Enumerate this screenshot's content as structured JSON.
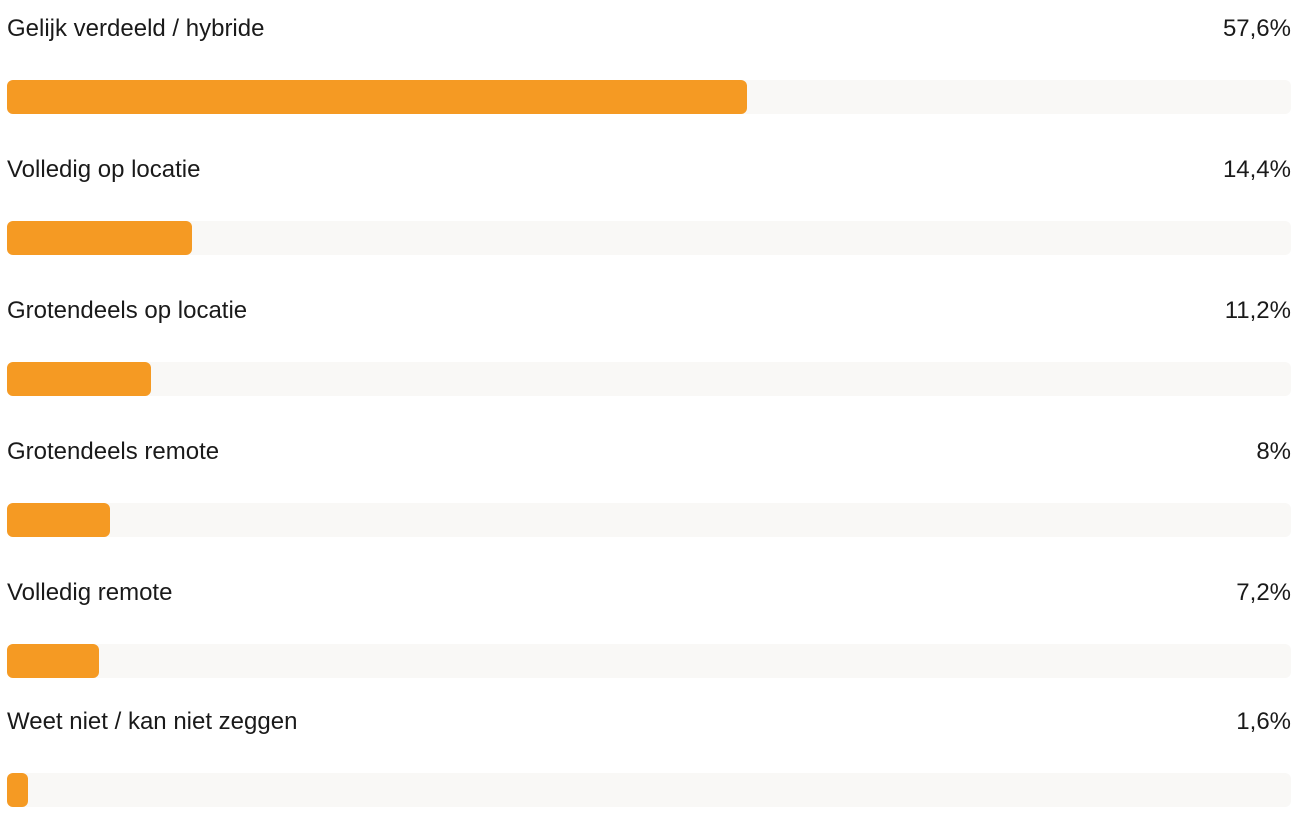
{
  "chart_data": {
    "type": "bar",
    "orientation": "horizontal",
    "categories": [
      "Gelijk verdeeld / hybride",
      "Volledig op locatie",
      "Grotendeels op locatie",
      "Grotendeels remote",
      "Volledig remote",
      "Weet niet / kan niet zeggen"
    ],
    "values": [
      57.6,
      14.4,
      11.2,
      8,
      7.2,
      1.6
    ],
    "value_labels": [
      "57,6%",
      "14,4%",
      "11,2%",
      "8%",
      "7,2%",
      "1,6%"
    ],
    "xlim": [
      0,
      100
    ],
    "unit": "%",
    "grid": false,
    "legend": "none"
  },
  "colors": {
    "bar": "#f59a23",
    "track": "#f9f8f6",
    "text": "#1a1a1a"
  }
}
